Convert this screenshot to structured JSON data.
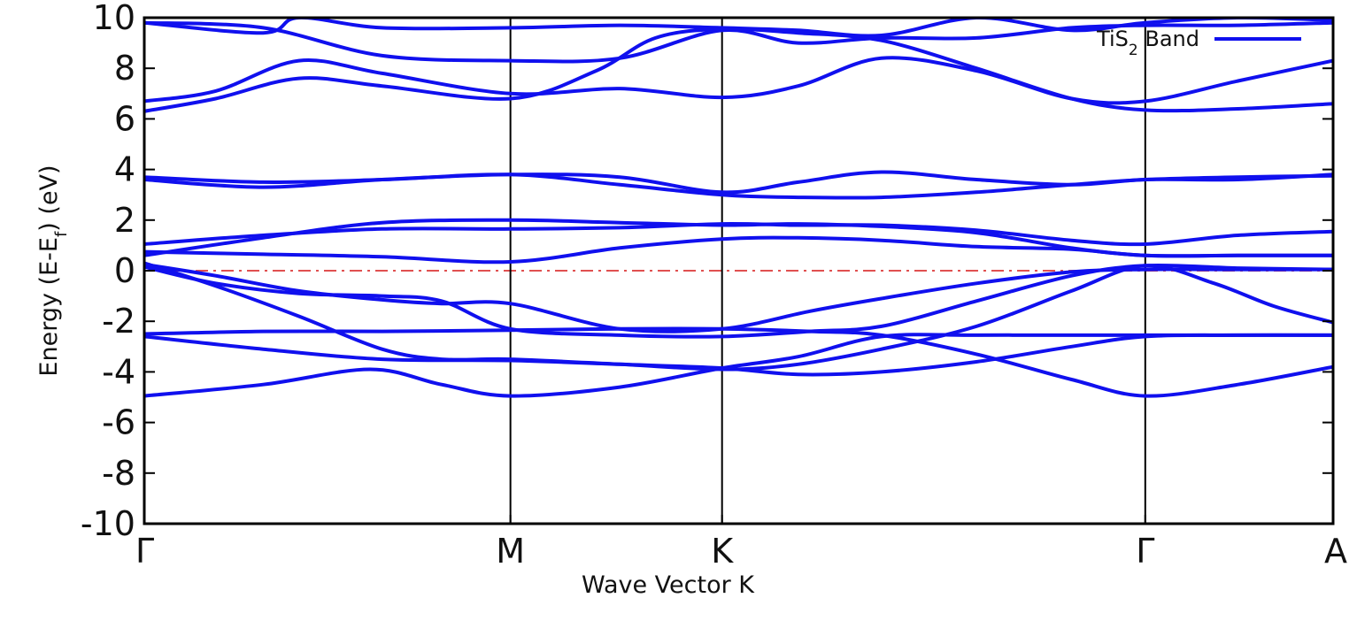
{
  "chart_data": {
    "type": "line",
    "xlabel": "Wave Vector K",
    "ylabel": "Energy (E-E",
    "ylabel_sub": "f",
    "ylabel_tail": ") (eV)",
    "ylim": [
      -10,
      10
    ],
    "yticks": [
      10,
      8,
      6,
      4,
      2,
      0,
      -2,
      -4,
      -6,
      -8,
      -10
    ],
    "xlim": [
      0,
      1
    ],
    "high_symmetry_points": [
      {
        "label": "Γ",
        "x": 0
      },
      {
        "label": "M",
        "x": 0.308
      },
      {
        "label": "K",
        "x": 0.486
      },
      {
        "label": "Γ",
        "x": 0.842
      },
      {
        "label": "A",
        "x": 1
      }
    ],
    "fermi_level": 0,
    "grid": false,
    "legend": {
      "text": "TiS",
      "sub": "2",
      "tail": " Band",
      "placement": "top-right"
    },
    "colors": {
      "band": "#1010ee",
      "fermi": "#e05050",
      "axis": "#000000"
    },
    "series": [
      {
        "values": [
          [
            0,
            -4.95
          ],
          [
            0.1,
            -4.5
          ],
          [
            0.19,
            -3.9
          ],
          [
            0.25,
            -4.5
          ],
          [
            0.308,
            -4.95
          ],
          [
            0.4,
            -4.6
          ],
          [
            0.486,
            -3.85
          ],
          [
            0.55,
            -3.4
          ],
          [
            0.62,
            -2.6
          ],
          [
            0.7,
            -2.55
          ],
          [
            0.78,
            -2.55
          ],
          [
            0.842,
            -2.55
          ],
          [
            0.92,
            -2.55
          ],
          [
            1,
            -2.55
          ]
        ]
      },
      {
        "values": [
          [
            0,
            -2.5
          ],
          [
            0.1,
            -2.4
          ],
          [
            0.2,
            -2.4
          ],
          [
            0.308,
            -2.35
          ],
          [
            0.4,
            -2.3
          ],
          [
            0.486,
            -2.3
          ],
          [
            0.56,
            -2.4
          ],
          [
            0.62,
            -2.55
          ],
          [
            0.7,
            -3.3
          ],
          [
            0.78,
            -4.3
          ],
          [
            0.842,
            -4.95
          ],
          [
            0.92,
            -4.5
          ],
          [
            1,
            -3.8
          ]
        ]
      },
      {
        "values": [
          [
            0,
            -2.6
          ],
          [
            0.1,
            -3.1
          ],
          [
            0.2,
            -3.5
          ],
          [
            0.308,
            -3.55
          ],
          [
            0.4,
            -3.7
          ],
          [
            0.486,
            -3.85
          ],
          [
            0.55,
            -4.1
          ],
          [
            0.62,
            -4.0
          ],
          [
            0.7,
            -3.6
          ],
          [
            0.78,
            -3.0
          ],
          [
            0.842,
            -2.6
          ],
          [
            0.92,
            -2.55
          ],
          [
            1,
            -2.55
          ]
        ]
      },
      {
        "values": [
          [
            0,
            0.3
          ],
          [
            0.06,
            -0.6
          ],
          [
            0.13,
            -1.8
          ],
          [
            0.2,
            -3.1
          ],
          [
            0.25,
            -3.5
          ],
          [
            0.308,
            -3.5
          ],
          [
            0.4,
            -3.7
          ],
          [
            0.486,
            -3.9
          ],
          [
            0.55,
            -3.7
          ],
          [
            0.62,
            -3.1
          ],
          [
            0.7,
            -2.2
          ],
          [
            0.78,
            -0.8
          ],
          [
            0.842,
            0.2
          ],
          [
            0.9,
            -0.5
          ],
          [
            0.95,
            -1.4
          ],
          [
            1,
            -2.05
          ]
        ]
      },
      {
        "values": [
          [
            0,
            0.25
          ],
          [
            0.06,
            -0.2
          ],
          [
            0.13,
            -0.8
          ],
          [
            0.2,
            -1.15
          ],
          [
            0.25,
            -1.3
          ],
          [
            0.308,
            -1.3
          ],
          [
            0.4,
            -2.3
          ],
          [
            0.486,
            -2.3
          ],
          [
            0.56,
            -1.6
          ],
          [
            0.62,
            -1.1
          ],
          [
            0.7,
            -0.5
          ],
          [
            0.78,
            -0.05
          ],
          [
            0.842,
            0.05
          ],
          [
            0.92,
            0.05
          ],
          [
            1,
            0.05
          ]
        ]
      },
      {
        "values": [
          [
            0,
            0.15
          ],
          [
            0.06,
            -0.5
          ],
          [
            0.13,
            -0.9
          ],
          [
            0.2,
            -1.0
          ],
          [
            0.25,
            -1.2
          ],
          [
            0.308,
            -2.3
          ],
          [
            0.4,
            -2.55
          ],
          [
            0.486,
            -2.6
          ],
          [
            0.56,
            -2.4
          ],
          [
            0.62,
            -2.2
          ],
          [
            0.7,
            -1.2
          ],
          [
            0.78,
            -0.2
          ],
          [
            0.842,
            0.2
          ],
          [
            0.92,
            0.1
          ],
          [
            1,
            0.05
          ]
        ]
      },
      {
        "values": [
          [
            0,
            0.75
          ],
          [
            0.1,
            0.65
          ],
          [
            0.2,
            0.55
          ],
          [
            0.308,
            0.35
          ],
          [
            0.4,
            0.9
          ],
          [
            0.486,
            1.25
          ],
          [
            0.55,
            1.3
          ],
          [
            0.62,
            1.2
          ],
          [
            0.7,
            0.95
          ],
          [
            0.78,
            0.85
          ],
          [
            0.842,
            0.6
          ],
          [
            0.92,
            0.6
          ],
          [
            1,
            0.6
          ]
        ]
      },
      {
        "values": [
          [
            0,
            1.05
          ],
          [
            0.1,
            1.4
          ],
          [
            0.2,
            1.65
          ],
          [
            0.308,
            1.65
          ],
          [
            0.4,
            1.7
          ],
          [
            0.486,
            1.85
          ],
          [
            0.55,
            1.8
          ],
          [
            0.62,
            1.8
          ],
          [
            0.7,
            1.6
          ],
          [
            0.78,
            1.2
          ],
          [
            0.842,
            1.05
          ],
          [
            0.92,
            1.4
          ],
          [
            1,
            1.55
          ]
        ]
      },
      {
        "values": [
          [
            0,
            0.6
          ],
          [
            0.1,
            1.3
          ],
          [
            0.2,
            1.9
          ],
          [
            0.308,
            2.0
          ],
          [
            0.4,
            1.9
          ],
          [
            0.486,
            1.8
          ],
          [
            0.55,
            1.85
          ],
          [
            0.62,
            1.75
          ],
          [
            0.7,
            1.5
          ],
          [
            0.78,
            0.9
          ],
          [
            0.842,
            0.6
          ],
          [
            0.92,
            0.6
          ],
          [
            1,
            0.6
          ]
        ]
      },
      {
        "values": [
          [
            0,
            3.6
          ],
          [
            0.1,
            3.3
          ],
          [
            0.2,
            3.6
          ],
          [
            0.308,
            3.8
          ],
          [
            0.4,
            3.7
          ],
          [
            0.486,
            3.1
          ],
          [
            0.55,
            3.5
          ],
          [
            0.62,
            3.9
          ],
          [
            0.7,
            3.6
          ],
          [
            0.78,
            3.4
          ],
          [
            0.842,
            3.6
          ],
          [
            0.92,
            3.6
          ],
          [
            1,
            3.8
          ]
        ]
      },
      {
        "values": [
          [
            0,
            3.7
          ],
          [
            0.1,
            3.5
          ],
          [
            0.2,
            3.6
          ],
          [
            0.308,
            3.8
          ],
          [
            0.4,
            3.4
          ],
          [
            0.486,
            3.0
          ],
          [
            0.55,
            2.9
          ],
          [
            0.62,
            2.9
          ],
          [
            0.7,
            3.1
          ],
          [
            0.78,
            3.4
          ],
          [
            0.842,
            3.6
          ],
          [
            0.92,
            3.7
          ],
          [
            1,
            3.75
          ]
        ]
      },
      {
        "values": [
          [
            0,
            6.3
          ],
          [
            0.06,
            6.8
          ],
          [
            0.13,
            7.6
          ],
          [
            0.2,
            7.3
          ],
          [
            0.308,
            6.8
          ],
          [
            0.38,
            7.9
          ],
          [
            0.43,
            9.2
          ],
          [
            0.486,
            9.55
          ],
          [
            0.55,
            9.4
          ],
          [
            0.62,
            9.1
          ],
          [
            0.7,
            8.0
          ],
          [
            0.78,
            6.8
          ],
          [
            0.842,
            6.35
          ],
          [
            0.92,
            6.4
          ],
          [
            1,
            6.6
          ]
        ]
      },
      {
        "values": [
          [
            0,
            6.7
          ],
          [
            0.06,
            7.1
          ],
          [
            0.13,
            8.3
          ],
          [
            0.2,
            7.8
          ],
          [
            0.308,
            7.0
          ],
          [
            0.4,
            7.2
          ],
          [
            0.486,
            6.85
          ],
          [
            0.55,
            7.3
          ],
          [
            0.62,
            8.4
          ],
          [
            0.7,
            7.9
          ],
          [
            0.78,
            6.8
          ],
          [
            0.842,
            6.7
          ],
          [
            0.92,
            7.5
          ],
          [
            1,
            8.3
          ]
        ]
      },
      {
        "values": [
          [
            0,
            9.8
          ],
          [
            0.1,
            9.6
          ],
          [
            0.2,
            8.5
          ],
          [
            0.308,
            8.3
          ],
          [
            0.4,
            8.4
          ],
          [
            0.486,
            9.5
          ],
          [
            0.55,
            9.0
          ],
          [
            0.62,
            9.2
          ],
          [
            0.7,
            9.2
          ],
          [
            0.78,
            9.6
          ],
          [
            0.842,
            9.7
          ],
          [
            0.92,
            9.7
          ],
          [
            1,
            9.8
          ]
        ]
      },
      {
        "values": [
          [
            0,
            9.8
          ],
          [
            0.1,
            9.4
          ],
          [
            0.13,
            10.0
          ],
          [
            0.2,
            9.6
          ],
          [
            0.308,
            9.6
          ],
          [
            0.4,
            9.7
          ],
          [
            0.486,
            9.6
          ],
          [
            0.55,
            9.5
          ],
          [
            0.62,
            9.3
          ],
          [
            0.7,
            10.0
          ],
          [
            0.78,
            9.5
          ],
          [
            0.842,
            9.8
          ],
          [
            0.92,
            10.0
          ],
          [
            1,
            9.9
          ]
        ]
      }
    ]
  }
}
